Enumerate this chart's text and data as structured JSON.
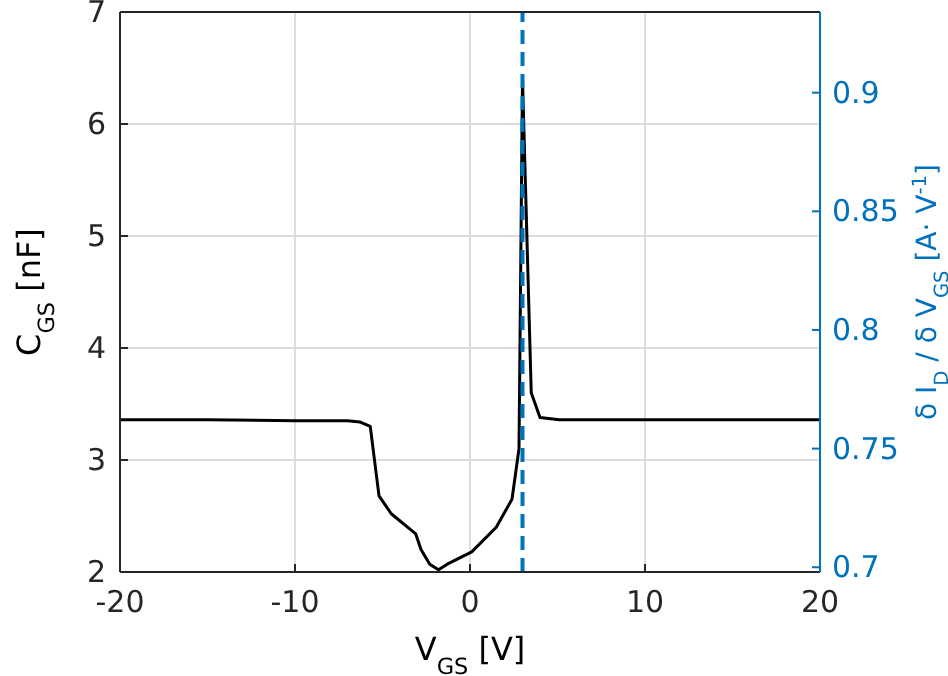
{
  "chart_data": {
    "type": "line",
    "xlabel": "V$_{GS}$ [V]",
    "ylabel": "C$_{GS}$ [nF]",
    "y2label": "δ I$_{D}$ / δ V$_{GS}$ [A· V$^{-1}$]",
    "x": [
      -20,
      -15,
      -10,
      -7,
      -6.3,
      -5.7,
      -5.2,
      -4.5,
      -3.1,
      -2.8,
      -2.3,
      -1.8,
      -1.3,
      0.1,
      1.5,
      2.4,
      2.8,
      3.0,
      3.5,
      4,
      5.1,
      10,
      15,
      20
    ],
    "series": [
      {
        "color": "#000000",
        "values": [
          3.36,
          3.36,
          3.35,
          3.35,
          3.34,
          3.3,
          2.68,
          2.52,
          2.34,
          2.2,
          2.07,
          2.02,
          2.07,
          2.18,
          2.4,
          2.65,
          3.1,
          6.4,
          3.6,
          3.38,
          3.36,
          3.36,
          3.36,
          3.36
        ]
      }
    ],
    "xlim": [
      -20,
      20
    ],
    "xticks": [
      -20,
      -10,
      0,
      10,
      20
    ],
    "ylim": [
      2,
      7
    ],
    "yticks": [
      2,
      3,
      4,
      5,
      6,
      7
    ],
    "y2lim": [
      0.698,
      0.934
    ],
    "y2ticks": [
      0.7,
      0.75,
      0.8,
      0.85,
      0.9
    ],
    "ref_lines": [
      {
        "axis": "x",
        "value": 3,
        "color": "#0072bd",
        "line_style": "dashed"
      }
    ],
    "grid": true,
    "line_style": "solid"
  }
}
